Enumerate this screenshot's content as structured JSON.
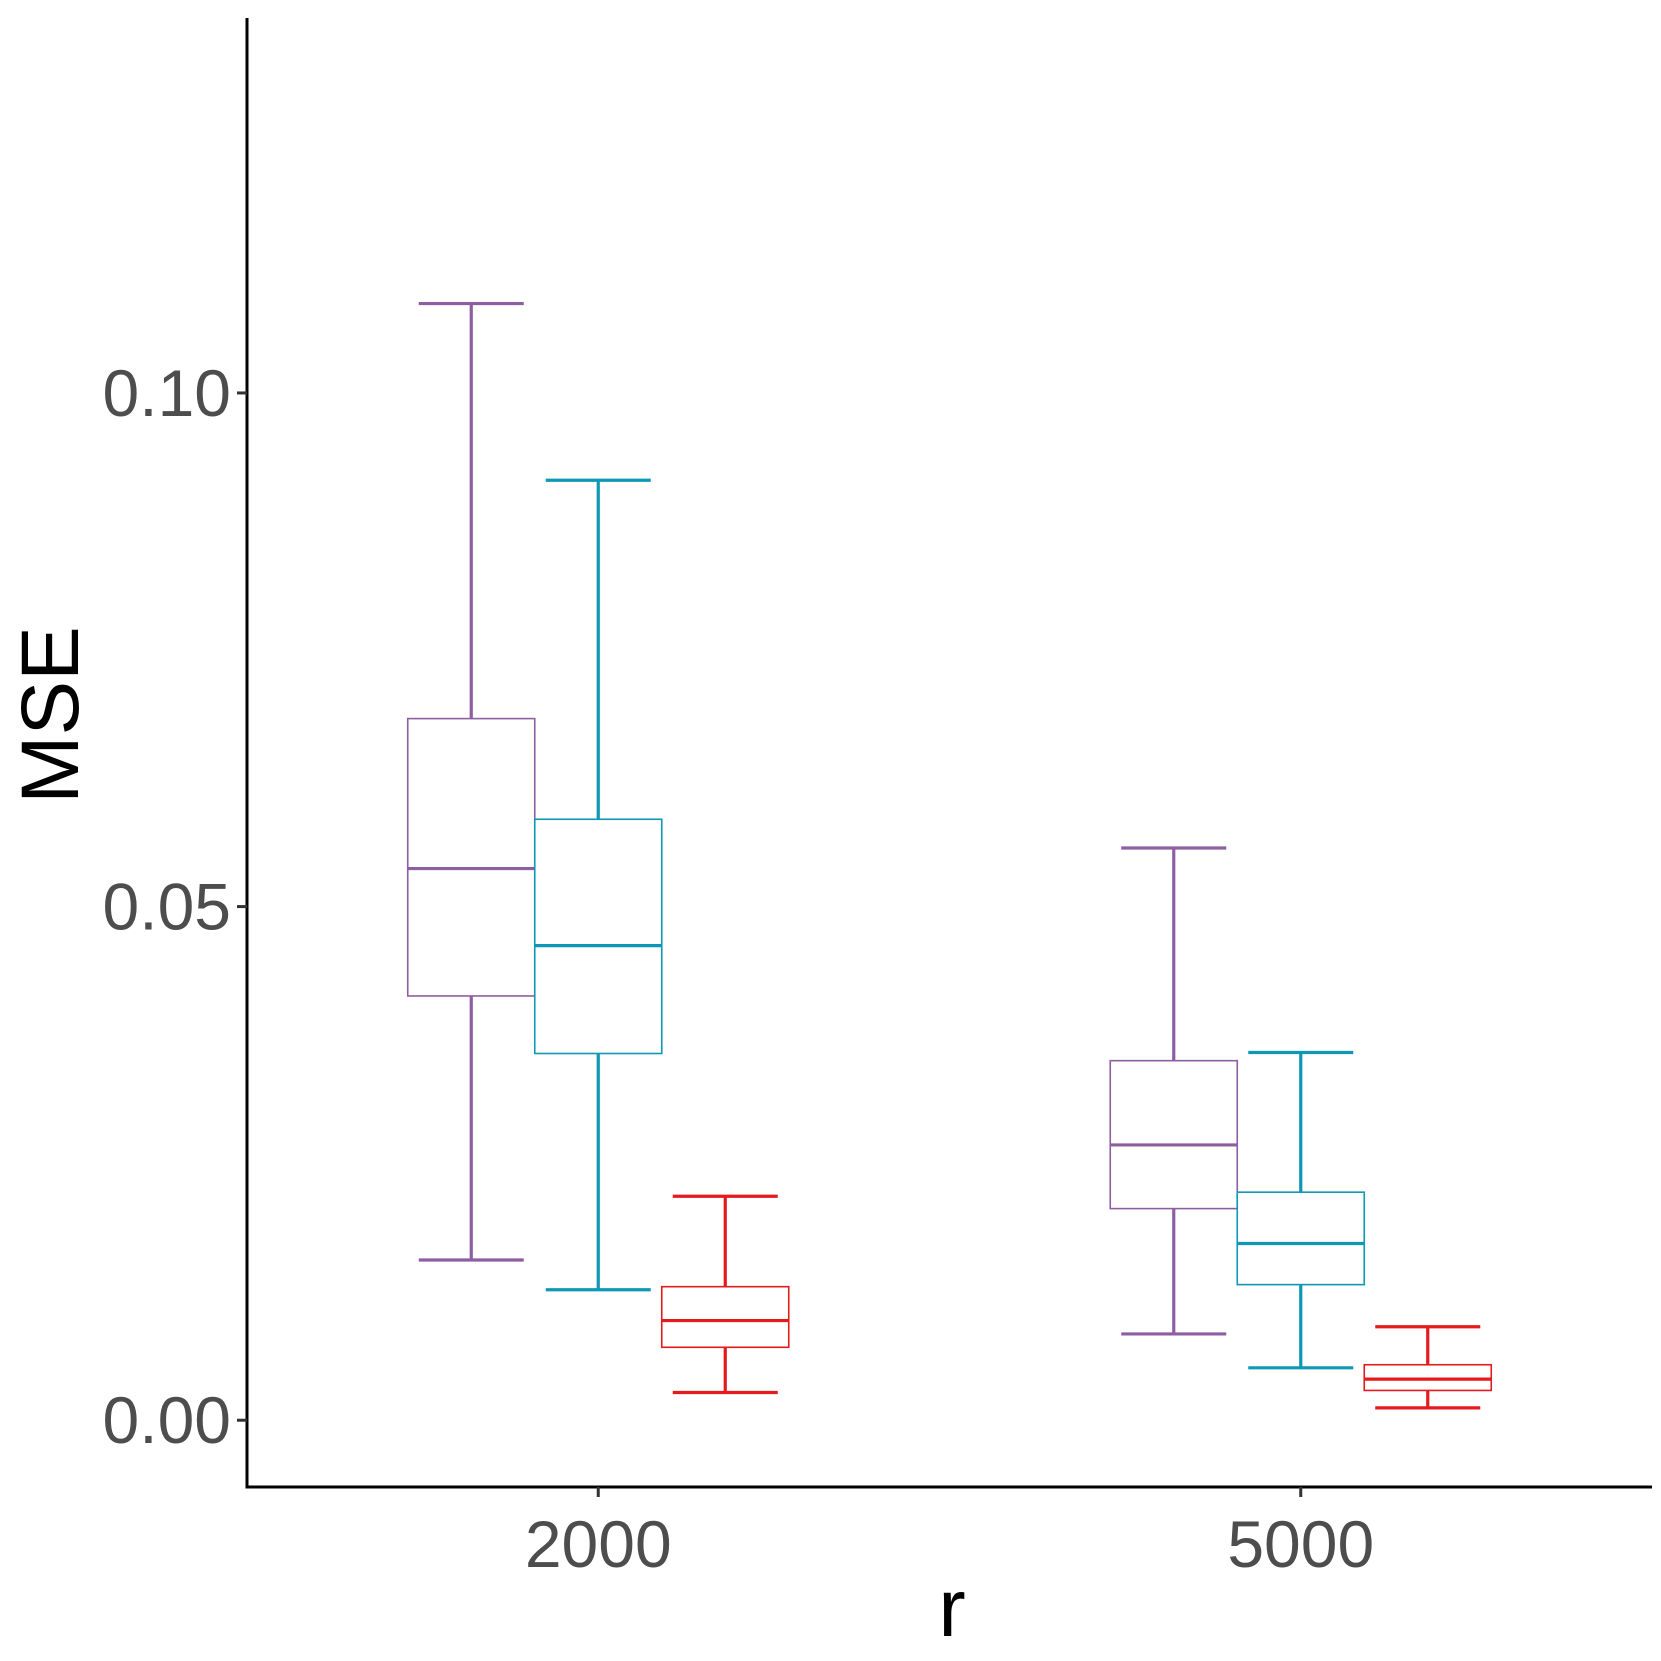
{
  "chart_data": {
    "type": "boxplot",
    "title": "",
    "xlabel": "r",
    "ylabel": "MSE",
    "ylim": [
      -0.0065,
      0.1365
    ],
    "grid": false,
    "legend": "none",
    "categories": [
      "2000",
      "5000"
    ],
    "y_ticks": [
      {
        "value": 0.0,
        "label": "0.00"
      },
      {
        "value": 0.05,
        "label": "0.05"
      },
      {
        "value": 0.1,
        "label": "0.10"
      }
    ],
    "series": [
      {
        "color": "#8e5ea2",
        "boxes": [
          {
            "min": 0.0156,
            "q1": 0.0413,
            "median": 0.0537,
            "q3": 0.0683,
            "max": 0.1087
          },
          {
            "min": 0.0084,
            "q1": 0.0206,
            "median": 0.0268,
            "q3": 0.035,
            "max": 0.0557
          }
        ]
      },
      {
        "color": "#0e98b5",
        "boxes": [
          {
            "min": 0.0127,
            "q1": 0.0357,
            "median": 0.0462,
            "q3": 0.0585,
            "max": 0.0915
          },
          {
            "min": 0.0051,
            "q1": 0.0132,
            "median": 0.0172,
            "q3": 0.0222,
            "max": 0.0358
          }
        ]
      },
      {
        "color": "#e41a1c",
        "boxes": [
          {
            "min": 0.0027,
            "q1": 0.0071,
            "median": 0.0097,
            "q3": 0.013,
            "max": 0.0218
          },
          {
            "min": 0.0012,
            "q1": 0.0029,
            "median": 0.004,
            "q3": 0.0054,
            "max": 0.0091
          }
        ]
      }
    ]
  }
}
